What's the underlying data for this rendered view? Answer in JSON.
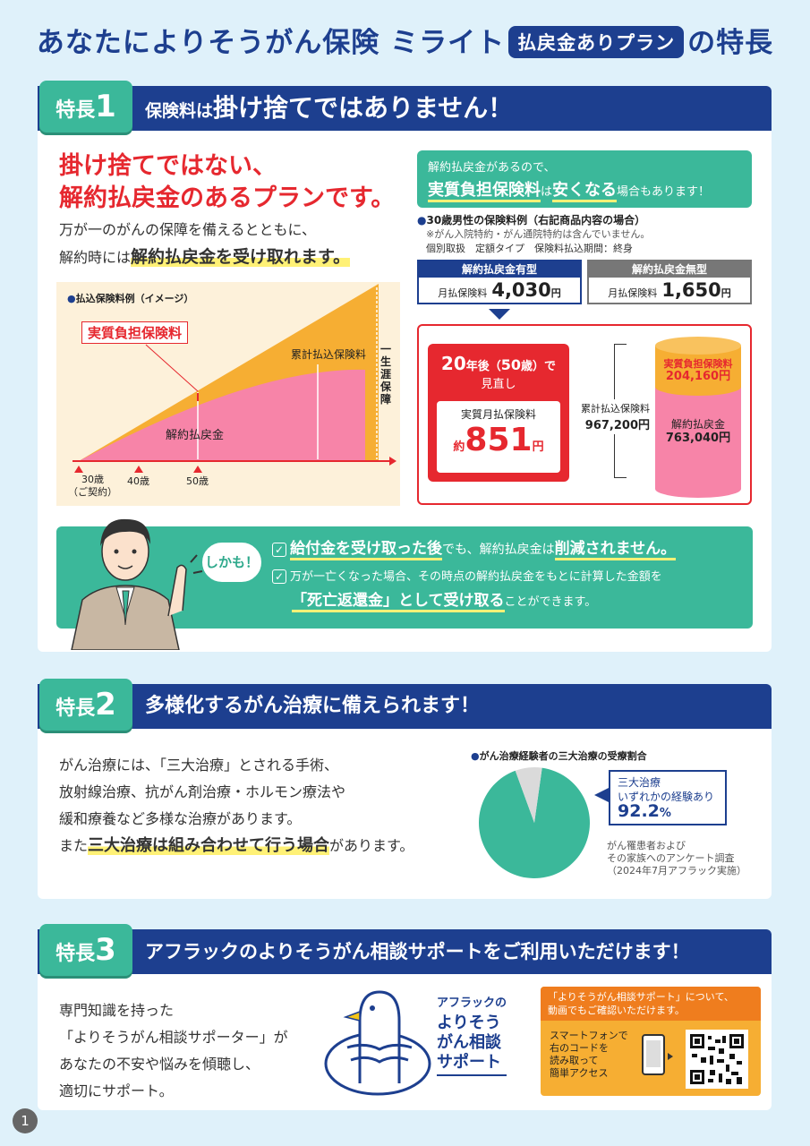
{
  "title": {
    "pre": "あなたによりそうがん保険 ミライト",
    "badge": "払戻金ありプラン",
    "post": "の特長"
  },
  "feature1": {
    "badge_label": "特長",
    "badge_num": "1",
    "header_pre": "保険料は",
    "header_em": "掛け捨てではありません！",
    "headline_line1": "掛け捨てではない、",
    "headline_line2": "解約払戻金のあるプランです。",
    "body_line1": "万が一のがんの保障を備えるとともに、",
    "body_line2_pre": "解約時には",
    "body_line2_em": "解約払戻金を受け取れます。",
    "graph_caption": "払込保険料例（イメージ）",
    "graph_label_real": "実質負担保険料",
    "graph_label_total": "累計払込保険料",
    "graph_label_refund": "解約払戻金",
    "graph_label_lifetime": "一生涯保障",
    "graph_ages": [
      "30歳",
      "40歳",
      "50歳"
    ],
    "graph_age_note": "（ご契約）",
    "green_box_line1": "解約払戻金があるので、",
    "green_box_line2_em": "実質負担保険料",
    "green_box_line2_mid": "は",
    "green_box_line2_em2": "安くなる",
    "green_box_line2_post": "場合もあります！",
    "example_title": "30歳男性の保険料例（右記商品内容の場合）",
    "example_note": "※がん入院特約・がん通院特約は含んでいません。",
    "example_conditions": "個別取扱　定額タイプ　保険料払込期間：終身",
    "plan_with": {
      "label": "解約払戻金有型",
      "price_label": "月払保険料",
      "price": "4,030",
      "unit": "円"
    },
    "plan_without": {
      "label": "解約払戻金無型",
      "price_label": "月払保険料",
      "price": "1,650",
      "unit": "円"
    },
    "review_title_num": "20",
    "review_title_mid": "年後（",
    "review_title_age": "50",
    "review_title_post": "歳）で",
    "review_title_line2": "見直し",
    "effective_label": "実質月払保険料",
    "effective_prefix": "約",
    "effective_value": "851",
    "effective_unit": "円",
    "total_label": "累計払込保険料",
    "total_value": "967,200円",
    "cyl_real_label": "実質負担保険料",
    "cyl_real_value": "204,160円",
    "cyl_refund_label": "解約払戻金",
    "cyl_refund_value": "763,040円",
    "shikamo": "しかも！",
    "point1_em": "給付金を受け取った後",
    "point1_mid": "でも、解約払戻金は",
    "point1_em2": "削減されません。",
    "point2_line1": "万が一亡くなった場合、その時点の解約払戻金をもとに計算した金額を",
    "point2_em": "「死亡返還金」として受け取る",
    "point2_post": "ことができます。"
  },
  "feature2": {
    "badge_label": "特長",
    "badge_num": "2",
    "header": "多様化するがん治療に備えられます！",
    "body_line1": "がん治療には、「三大治療」とされる手術、",
    "body_line2": "放射線治療、抗がん剤治療・ホルモン療法や",
    "body_line3": "緩和療養など多様な治療があります。",
    "body_line4_pre": "また",
    "body_line4_em": "三大治療は組み合わせて行う場合",
    "body_line4_post": "があります。",
    "pie_caption": "がん治療経験者の三大治療の受療割合",
    "callout_line1": "三大治療",
    "callout_line2": "いずれかの経験あり",
    "callout_value": "92.2",
    "callout_unit": "%",
    "source_line1": "がん罹患者および",
    "source_line2": "その家族へのアンケート調査",
    "source_line3": "（2024年7月アフラック実施）"
  },
  "chart_data": {
    "type": "pie",
    "title": "がん治療経験者の三大治療の受療割合",
    "categories": [
      "三大治療 いずれかの経験あり",
      ""
    ],
    "values": [
      92.2,
      7.8
    ],
    "colors": [
      "#3bb89a",
      "#dadada"
    ]
  },
  "feature3": {
    "badge_label": "特長",
    "badge_num": "3",
    "header": "アフラックのよりそうがん相談サポートをご利用いただけます！",
    "body_line1": "専門知識を持った",
    "body_line2": "「よりそうがん相談サポーター」が",
    "body_line3": "あなたの不安や悩みを傾聴し、",
    "body_line4": "適切にサポート。",
    "logo_line1": "アフラックの",
    "logo_line2": "よりそう",
    "logo_line3": "がん相談",
    "logo_line4": "サポート",
    "video_note_line1": "「よりそうがん相談サポート」について、",
    "video_note_line2": "動画でもご確認いただけます。",
    "qr_line1": "スマートフォンで",
    "qr_line2": "右のコードを",
    "qr_line3": "読み取って",
    "qr_line4": "簡単アクセス"
  },
  "page_number": "1"
}
